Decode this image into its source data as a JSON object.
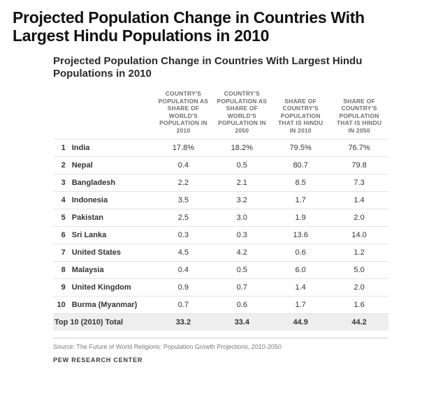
{
  "pageTitle": "Projected Population Change in Countries With Largest Hindu Populations in 2010",
  "table": {
    "title": "Projected Population Change in Countries With Largest Hindu Populations in 2010",
    "columns": [
      "COUNTRY'S POPULATION AS SHARE OF WORLD'S POPULATION IN 2010",
      "COUNTRY'S POPULATION AS SHARE OF WORLD'S POPULATION IN 2050",
      "SHARE OF COUNTRY'S POPULATION THAT IS HINDU IN 2010",
      "SHARE OF COUNTRY'S POPULATION THAT IS HINDU IN 2050"
    ],
    "rows": [
      {
        "rank": "1",
        "country": "India",
        "v1": "17.8%",
        "v2": "18.2%",
        "v3": "79.5%",
        "v4": "76.7%"
      },
      {
        "rank": "2",
        "country": "Nepal",
        "v1": "0.4",
        "v2": "0.5",
        "v3": "80.7",
        "v4": "79.8"
      },
      {
        "rank": "3",
        "country": "Bangladesh",
        "v1": "2.2",
        "v2": "2.1",
        "v3": "8.5",
        "v4": "7.3"
      },
      {
        "rank": "4",
        "country": "Indonesia",
        "v1": "3.5",
        "v2": "3.2",
        "v3": "1.7",
        "v4": "1.4"
      },
      {
        "rank": "5",
        "country": "Pakistan",
        "v1": "2.5",
        "v2": "3.0",
        "v3": "1.9",
        "v4": "2.0"
      },
      {
        "rank": "6",
        "country": "Sri Lanka",
        "v1": "0.3",
        "v2": "0.3",
        "v3": "13.6",
        "v4": "14.0"
      },
      {
        "rank": "7",
        "country": "United States",
        "v1": "4.5",
        "v2": "4.2",
        "v3": "0.6",
        "v4": "1.2"
      },
      {
        "rank": "8",
        "country": "Malaysia",
        "v1": "0.4",
        "v2": "0.5",
        "v3": "6.0",
        "v4": "5.0"
      },
      {
        "rank": "9",
        "country": "United Kingdom",
        "v1": "0.9",
        "v2": "0.7",
        "v3": "1.4",
        "v4": "2.0"
      },
      {
        "rank": "10",
        "country": "Burma (Myanmar)",
        "v1": "0.7",
        "v2": "0.6",
        "v3": "1.7",
        "v4": "1.6"
      }
    ],
    "total": {
      "label": "Top 10 (2010) Total",
      "v1": "33.2",
      "v2": "33.4",
      "v3": "44.9",
      "v4": "44.2"
    }
  },
  "source": "Source: The Future of World Religions: Population Growth Projections, 2010-2050",
  "org": "PEW RESEARCH CENTER"
}
